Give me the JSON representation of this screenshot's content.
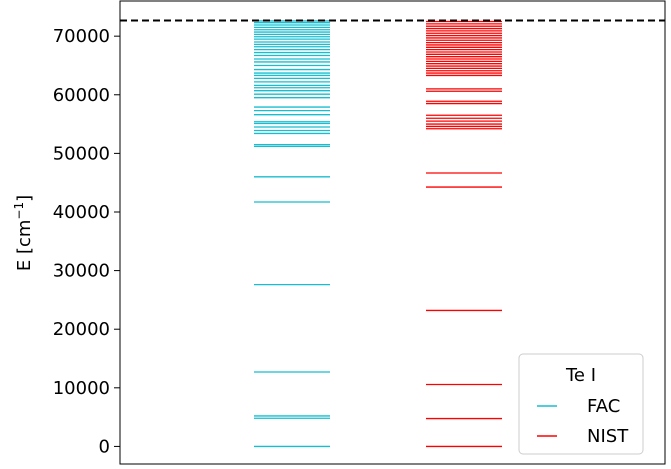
{
  "chart_data": {
    "type": "eventplot",
    "ylabel": {
      "base": "E [cm",
      "sup": "−1",
      "close": "]"
    },
    "ylim": [
      -3000,
      76000
    ],
    "yticks": [
      0,
      10000,
      20000,
      30000,
      40000,
      50000,
      60000,
      70000
    ],
    "ytick_labels": [
      "0",
      "10000",
      "20000",
      "30000",
      "40000",
      "50000",
      "60000",
      "70000"
    ],
    "ionization_limit": 72670,
    "grid": false,
    "legend": {
      "title": "Te I",
      "placement": "lower-right"
    },
    "series": [
      {
        "name": "FAC",
        "color": "#17becf",
        "levels": [
          0,
          4800,
          5200,
          12700,
          27600,
          41700,
          46000,
          51200,
          51500,
          53400,
          53900,
          54500,
          55100,
          55400,
          56600,
          57300,
          57900,
          59500,
          60100,
          60700,
          61200,
          61600,
          62200,
          62800,
          63300,
          63700,
          64300,
          65000,
          65600,
          66100,
          66700,
          67200,
          67700,
          68200,
          68600,
          69000,
          69500,
          69900,
          70300,
          70700,
          71100,
          71500,
          71900,
          72300,
          72600
        ]
      },
      {
        "name": "NIST",
        "color": "#ff0000",
        "levels": [
          0,
          4750,
          10560,
          23200,
          44250,
          46650,
          54200,
          54600,
          55000,
          55500,
          56000,
          56500,
          58500,
          58900,
          60600,
          61000,
          63300,
          63700,
          64100,
          64500,
          64900,
          65300,
          65700,
          66100,
          66500,
          66900,
          67300,
          67700,
          68100,
          68500,
          68900,
          69300,
          69700,
          70100,
          70500,
          70900,
          71300,
          71700,
          72100,
          72500
        ]
      }
    ]
  }
}
